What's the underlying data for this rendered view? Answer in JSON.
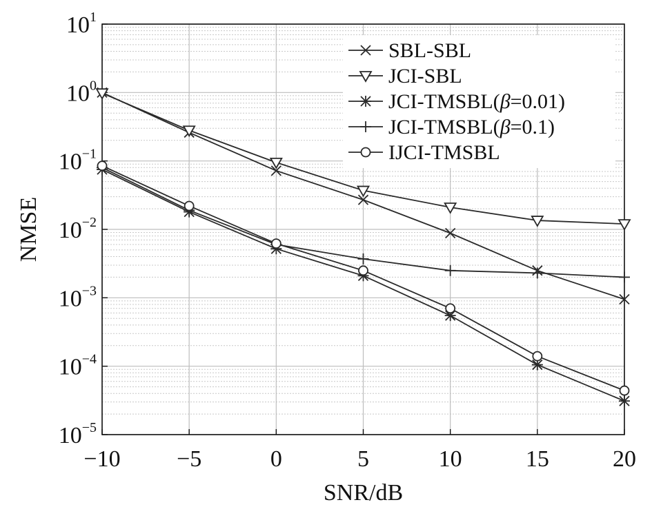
{
  "chart_data": {
    "type": "line",
    "title": "",
    "xlabel": "SNR/dB",
    "ylabel": "NMSE",
    "yscale": "log",
    "xlim": [
      -10,
      20
    ],
    "ylim": [
      1e-05,
      10
    ],
    "grid": true,
    "legend_position": "top-right",
    "x": [
      -10,
      -5,
      0,
      5,
      10,
      15,
      20
    ],
    "x_tick_labels": [
      "−10",
      "−5",
      "0",
      "5",
      "10",
      "15",
      "20"
    ],
    "y_ticks": [
      {
        "base": "10",
        "exp": "1",
        "value": 10
      },
      {
        "base": "10",
        "exp": "0",
        "value": 1
      },
      {
        "base": "10",
        "exp": "−1",
        "value": 0.1
      },
      {
        "base": "10",
        "exp": "−2",
        "value": 0.01
      },
      {
        "base": "10",
        "exp": "−3",
        "value": 0.001
      },
      {
        "base": "10",
        "exp": "−4",
        "value": 0.0001
      },
      {
        "base": "10",
        "exp": "−5",
        "value": 1e-05
      }
    ],
    "series": [
      {
        "name": "SBL-SBL",
        "marker": "x",
        "values": [
          1.0,
          0.26,
          0.072,
          0.027,
          0.0088,
          0.0025,
          0.00095
        ]
      },
      {
        "name": "JCI-SBL",
        "marker": "triangle-down",
        "values": [
          0.98,
          0.28,
          0.095,
          0.037,
          0.021,
          0.0135,
          0.012
        ]
      },
      {
        "name": "JCI-TMSBL(β=0.01)",
        "marker": "asterisk",
        "values": [
          0.075,
          0.018,
          0.0052,
          0.0021,
          0.00055,
          0.000105,
          3.1e-05
        ]
      },
      {
        "name": "JCI-TMSBL(β=0.1)",
        "marker": "plus",
        "values": [
          0.08,
          0.019,
          0.006,
          0.0037,
          0.0025,
          0.0023,
          0.002
        ]
      },
      {
        "name": "IJCI-TMSBL",
        "marker": "circle",
        "values": [
          0.085,
          0.022,
          0.0062,
          0.0025,
          0.0007,
          0.00014,
          4.4e-05
        ]
      }
    ]
  },
  "legend": {
    "entries": [
      {
        "label": "SBL-SBL",
        "marker": "x"
      },
      {
        "label": "JCI-SBL",
        "marker": "triangle-down"
      },
      {
        "label_pre": "JCI-TMSBL(",
        "label_sym": "β",
        "label_post": "=0.01)",
        "marker": "asterisk"
      },
      {
        "label_pre": "JCI-TMSBL(",
        "label_sym": "β",
        "label_post": "=0.1)",
        "marker": "plus"
      },
      {
        "label": "IJCI-TMSBL",
        "marker": "circle"
      }
    ]
  },
  "colors": {
    "line": "#2a2a2a",
    "grid": "#c8c8c8",
    "axis": "#111111"
  }
}
